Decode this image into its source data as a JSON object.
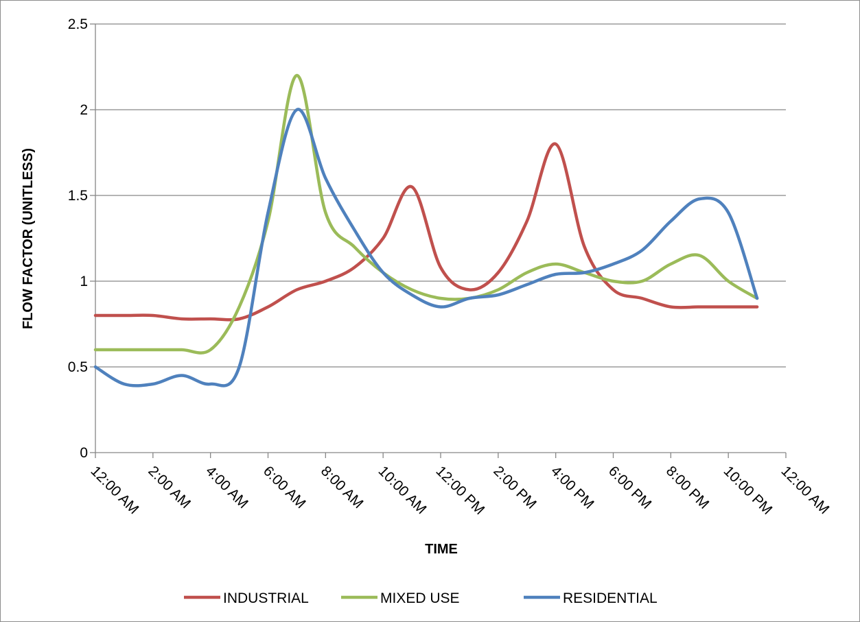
{
  "chart_data": {
    "type": "line",
    "smooth": true,
    "xlabel": "TIME",
    "ylabel": "FLOW FACTOR (UNITLESS)",
    "ylim": [
      0,
      2.5
    ],
    "y_ticks": [
      "0",
      "0.5",
      "1",
      "1.5",
      "2",
      "2.5"
    ],
    "x_ticks": [
      "12:00 AM",
      "2:00 AM",
      "4:00 AM",
      "6:00 AM",
      "8:00 AM",
      "10:00 AM",
      "12:00 PM",
      "2:00 PM",
      "4:00 PM",
      "6:00 PM",
      "8:00 PM",
      "10:00 PM",
      "12:00 AM"
    ],
    "x_hours": [
      0,
      1,
      2,
      3,
      4,
      5,
      6,
      7,
      8,
      9,
      10,
      11,
      12,
      13,
      14,
      15,
      16,
      17,
      18,
      19,
      20,
      21,
      22,
      23
    ],
    "grid": true,
    "legend_position": "bottom",
    "series": [
      {
        "name": "INDUSTRIAL",
        "color": "#C0504D",
        "values": [
          0.8,
          0.8,
          0.8,
          0.78,
          0.78,
          0.78,
          0.85,
          0.95,
          1.0,
          1.08,
          1.25,
          1.55,
          1.08,
          0.95,
          1.05,
          1.35,
          1.8,
          1.2,
          0.95,
          0.9,
          0.85,
          0.85,
          0.85,
          0.85
        ]
      },
      {
        "name": "MIXED USE",
        "color": "#9BBB59",
        "values": [
          0.6,
          0.6,
          0.6,
          0.6,
          0.6,
          0.85,
          1.35,
          2.2,
          1.4,
          1.2,
          1.05,
          0.95,
          0.9,
          0.9,
          0.95,
          1.05,
          1.1,
          1.05,
          1.0,
          1.0,
          1.1,
          1.15,
          1.0,
          0.9
        ]
      },
      {
        "name": "RESIDENTIAL",
        "color": "#4F81BD",
        "values": [
          0.5,
          0.4,
          0.4,
          0.45,
          0.4,
          0.5,
          1.4,
          2.0,
          1.6,
          1.3,
          1.05,
          0.92,
          0.85,
          0.9,
          0.92,
          0.98,
          1.04,
          1.05,
          1.1,
          1.18,
          1.35,
          1.48,
          1.4,
          0.9
        ]
      }
    ]
  }
}
